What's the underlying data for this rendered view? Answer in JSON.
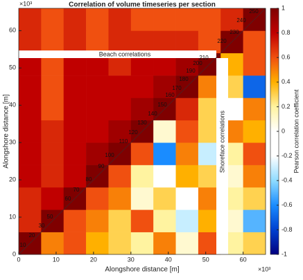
{
  "chart_data": {
    "type": "heatmap",
    "title": "Correlation of volume timeseries per section",
    "x_label": "Alongshore distance [m]",
    "y_label": "Alongshore distance [m]",
    "x_exponent_label": "×10³",
    "y_exponent_label": "×10³",
    "annotations": [
      "Beach correlations",
      "Shoreface correlations"
    ],
    "section_labels": [
      "10",
      "20",
      "30",
      "50",
      "60",
      "70",
      "80",
      "90",
      "100",
      "110",
      "120",
      "130",
      "140",
      "150",
      "160",
      "170",
      "180",
      "190",
      "200",
      "210",
      "220",
      "230",
      "240",
      "250"
    ],
    "x": [
      3000,
      9000,
      15000,
      21000,
      27000,
      33000,
      39000,
      45000,
      51000,
      57000,
      63000
    ],
    "y": [
      3000,
      9000,
      15000,
      21000,
      27000,
      33000,
      39000,
      45000,
      51000,
      57000,
      63000
    ],
    "z": [
      [
        1,
        0.5,
        0.6,
        0.4,
        0.3,
        0.2,
        0.5,
        0.1,
        0.6,
        0.2,
        0.3
      ],
      [
        0.7,
        1,
        0.6,
        0.5,
        0.3,
        0.6,
        0.2,
        -0.3,
        0.4,
        0.1,
        -0.5
      ],
      [
        0.7,
        0.8,
        1,
        0.6,
        0.5,
        0.1,
        0.3,
        -0.2,
        0.5,
        0.2,
        0.3
      ],
      [
        0.8,
        0.7,
        0.8,
        1,
        0.6,
        0.2,
        0.0,
        0.4,
        0.3,
        0.1,
        0.5
      ],
      [
        0.8,
        0.7,
        0.8,
        0.9,
        1,
        0.6,
        -0.6,
        0.5,
        -0.3,
        0.2,
        0.6
      ],
      [
        0.8,
        0.7,
        0.8,
        0.8,
        0.9,
        1,
        0.1,
        0.6,
        0.3,
        0.5,
        0.4
      ],
      [
        0.8,
        0.6,
        0.8,
        0.8,
        0.8,
        0.9,
        1,
        0.7,
        0.3,
        0.0,
        0.5
      ],
      [
        0.8,
        0.6,
        0.8,
        0.8,
        0.8,
        0.8,
        0.9,
        1,
        0.5,
        0.3,
        -0.7
      ],
      [
        0.8,
        0.6,
        0.8,
        0.8,
        0.7,
        0.8,
        0.8,
        0.9,
        1,
        0.4,
        0.6
      ],
      [
        0.7,
        0.6,
        0.7,
        0.6,
        0.7,
        0.7,
        0.7,
        0.7,
        0.6,
        1,
        0.6
      ],
      [
        0.7,
        0.6,
        0.7,
        0.6,
        0.7,
        0.6,
        0.6,
        0.6,
        0.6,
        0.7,
        1
      ]
    ],
    "xlim": [
      0,
      66000
    ],
    "ylim": [
      0,
      66000
    ],
    "xticks": [
      0,
      {
        "value": 10000,
        "label": "10"
      },
      {
        "value": 20000,
        "label": "20"
      },
      {
        "value": 30000,
        "label": "30"
      },
      {
        "value": 40000,
        "label": "40"
      },
      {
        "value": 50000,
        "label": "50"
      },
      {
        "value": 60000,
        "label": "60"
      }
    ],
    "yticks": [
      0,
      {
        "value": 10000,
        "label": "10"
      },
      {
        "value": 20000,
        "label": "20"
      },
      {
        "value": 30000,
        "label": "30"
      },
      {
        "value": 40000,
        "label": "40"
      },
      {
        "value": 50000,
        "label": "50"
      },
      {
        "value": 60000,
        "label": "60"
      }
    ],
    "colorbar": {
      "label": "Pearson correlation coefficient",
      "lim": [
        -1,
        1
      ],
      "ticks": [
        -1,
        -0.8,
        -0.6,
        -0.4,
        -0.2,
        0,
        0.2,
        0.4,
        0.6,
        0.8,
        1
      ]
    },
    "colormap": [
      "#00007f",
      "#0040d0",
      "#1a8cff",
      "#8fdcff",
      "#ffffff",
      "#ffffff",
      "#fff3a0",
      "#ffb000",
      "#f05010",
      "#c00000",
      "#7f0000"
    ]
  }
}
